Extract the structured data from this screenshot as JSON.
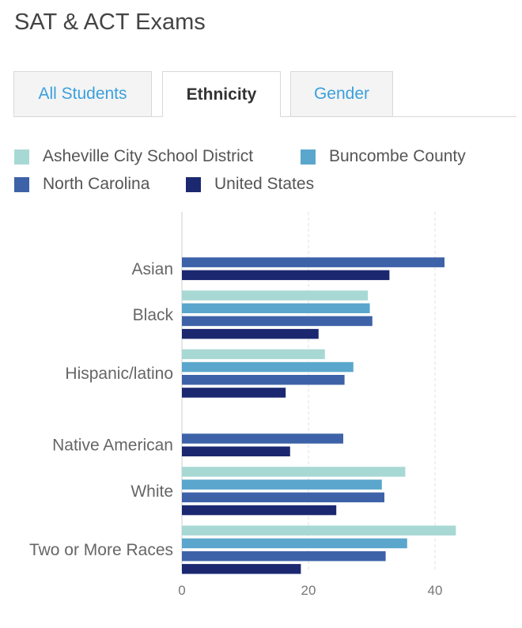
{
  "page": {
    "title": "SAT & ACT Exams",
    "tabs": [
      {
        "label": "All Students",
        "active": false
      },
      {
        "label": "Ethnicity",
        "active": true
      },
      {
        "label": "Gender",
        "active": false
      }
    ]
  },
  "chart_data": {
    "type": "bar",
    "orientation": "horizontal",
    "categories": [
      "Asian",
      "Black",
      "Hispanic/latino",
      "Native American",
      "White",
      "Two or More Races"
    ],
    "series": [
      {
        "name": "Asheville City School District",
        "color": "#a8d8d4",
        "values": [
          null,
          29.4,
          22.6,
          null,
          35.3,
          43.3
        ]
      },
      {
        "name": "Buncombe County",
        "color": "#5ba6cc",
        "values": [
          null,
          29.7,
          27.1,
          null,
          31.6,
          35.6
        ]
      },
      {
        "name": "North Carolina",
        "color": "#3d62a8",
        "values": [
          41.5,
          30.1,
          25.7,
          25.5,
          32.0,
          32.2
        ]
      },
      {
        "name": "United States",
        "color": "#1b2870",
        "values": [
          32.8,
          21.6,
          16.4,
          17.1,
          24.4,
          18.8
        ]
      }
    ],
    "xlim": [
      0,
      52
    ],
    "xticks": [
      0,
      20,
      40
    ],
    "grid": true,
    "legend_position": "top"
  }
}
